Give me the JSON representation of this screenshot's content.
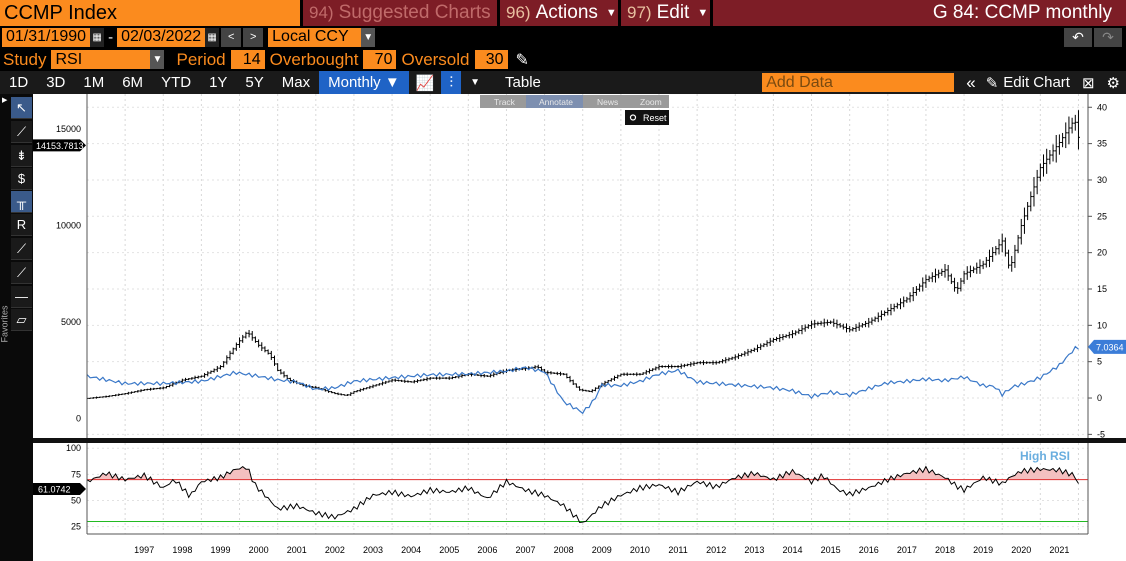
{
  "header": {
    "ticker": "CCMP Index",
    "suggested": {
      "num": "94)",
      "label": "Suggested Charts"
    },
    "actions": {
      "num": "96)",
      "label": "Actions"
    },
    "edit": {
      "num": "97)",
      "label": "Edit"
    },
    "page_title": "G 84: CCMP monthly"
  },
  "controls": {
    "start_date": "01/31/1990",
    "date_sep": "-",
    "end_date": "02/03/2022",
    "currency": "Local CCY"
  },
  "study": {
    "study_label": "Study",
    "study_value": "RSI",
    "period_label": "Period",
    "period_value": "14",
    "overbought_label": "Overbought",
    "overbought_value": "70",
    "oversold_label": "Oversold",
    "oversold_value": "30"
  },
  "toolbar": {
    "ranges": [
      "1D",
      "3D",
      "1M",
      "6M",
      "YTD",
      "1Y",
      "5Y",
      "Max"
    ],
    "frequency": "Monthly ▼",
    "table": "Table",
    "add_data_placeholder": "Add Data",
    "edit_chart": "Edit Chart"
  },
  "chart_tools": {
    "track": "Track",
    "annotate": "Annotate",
    "news": "News",
    "zoom": "Zoom",
    "reset": "Reset"
  },
  "sidebar": {
    "favorites": "Favorites"
  },
  "colors": {
    "orange": "#fb8b1e",
    "maroon": "#7d1d26",
    "blue_line": "#3a78c8",
    "overbought_line": "#e03030",
    "oversold_line": "#22bb22",
    "rsi_fill": "#f4c0c0",
    "badge_blue": "#3b7dd8"
  },
  "chart_data": [
    {
      "type": "line",
      "x": [
        "1997",
        "1998",
        "1999",
        "2000",
        "2001",
        "2002",
        "2003",
        "2004",
        "2005",
        "2006",
        "2007",
        "2008",
        "2009",
        "2010",
        "2011",
        "2012",
        "2013",
        "2014",
        "2015",
        "2016",
        "2017",
        "2018",
        "2019",
        "2020",
        "2021"
      ],
      "x_tick_labels": [
        "1997",
        "1998",
        "1999",
        "2000",
        "2001",
        "2002",
        "2003",
        "2004",
        "2005",
        "2006",
        "2007",
        "2008",
        "2009",
        "2010",
        "2011",
        "2012",
        "2013",
        "2014",
        "2015",
        "2016",
        "2017",
        "2018",
        "2019",
        "2020",
        "2021"
      ],
      "series": [
        {
          "axis": "left",
          "x": [
            1996.0,
            1996.5,
            1997.0,
            1997.5,
            1998.0,
            1998.5,
            1999.0,
            1999.5,
            1999.9,
            2000.2,
            2000.5,
            2000.8,
            2001.0,
            2001.3,
            2001.7,
            2002.0,
            2002.5,
            2002.8,
            2003.0,
            2003.5,
            2004.0,
            2004.5,
            2005.0,
            2005.5,
            2006.0,
            2006.5,
            2007.0,
            2007.5,
            2007.8,
            2008.0,
            2008.5,
            2008.9,
            2009.2,
            2009.5,
            2010.0,
            2010.5,
            2011.0,
            2011.5,
            2012.0,
            2012.5,
            2013.0,
            2013.5,
            2014.0,
            2014.5,
            2015.0,
            2015.5,
            2016.0,
            2016.5,
            2017.0,
            2017.5,
            2018.0,
            2018.5,
            2018.8,
            2019.0,
            2019.5,
            2020.0,
            2020.2,
            2020.5,
            2021.0,
            2021.5,
            2021.9,
            2022.05
          ],
          "values": [
            1050,
            1150,
            1300,
            1500,
            1600,
            2000,
            2200,
            2700,
            3800,
            4500,
            3800,
            3300,
            2500,
            2000,
            1700,
            1600,
            1300,
            1200,
            1400,
            1700,
            2000,
            1900,
            2100,
            2100,
            2300,
            2200,
            2500,
            2600,
            2700,
            2400,
            2300,
            1500,
            1400,
            1800,
            2300,
            2300,
            2700,
            2700,
            2900,
            2900,
            3200,
            3600,
            4100,
            4400,
            4900,
            5000,
            4600,
            5000,
            5600,
            6200,
            7200,
            7700,
            6600,
            7500,
            8000,
            9200,
            7700,
            10000,
            13000,
            14300,
            15500,
            14100
          ]
        },
        {
          "axis": "right",
          "x": [
            1996.0,
            1997.0,
            1998.0,
            1999.0,
            1999.9,
            2000.5,
            2001.0,
            2001.5,
            2002.0,
            2002.5,
            2003.0,
            2004.0,
            2005.0,
            2006.0,
            2007.0,
            2007.5,
            2008.0,
            2008.5,
            2009.0,
            2009.3,
            2009.5,
            2010.0,
            2010.5,
            2011.0,
            2011.5,
            2012.0,
            2013.0,
            2014.0,
            2014.5,
            2015.0,
            2015.5,
            2016.0,
            2016.5,
            2017.0,
            2017.5,
            2018.0,
            2018.5,
            2019.0,
            2019.5,
            2019.8,
            2020.0,
            2020.3,
            2020.6,
            2021.0,
            2021.5,
            2021.9,
            2022.05
          ],
          "values": [
            3,
            2,
            2,
            2.3,
            3.5,
            3,
            2.5,
            2.2,
            1.2,
            1.4,
            2.3,
            2.8,
            3.2,
            3.3,
            3.7,
            4.2,
            3.6,
            -0.5,
            -2,
            -0.3,
            1.8,
            1.7,
            2.3,
            3.3,
            3.8,
            2.2,
            1.8,
            1.4,
            1.0,
            0.2,
            0.8,
            0.4,
            1.3,
            2.1,
            2.3,
            2.6,
            2.4,
            2.9,
            1.7,
            1.6,
            0.5,
            1.6,
            2.0,
            2.8,
            4.5,
            6.8,
            7.0364
          ]
        }
      ],
      "ylim": [
        -1000,
        16500
      ],
      "y_ticks": [
        0,
        5000,
        10000,
        15000
      ],
      "y_tick_labels": [
        "0",
        "5000",
        "10000",
        "15000"
      ],
      "ylim_right": [
        -5.5,
        41
      ],
      "y_ticks_right": [
        -5,
        0,
        5,
        10,
        15,
        20,
        25,
        30,
        35,
        40
      ],
      "y_tick_labels_right": [
        "-5",
        "0",
        "5",
        "10",
        "15",
        "20",
        "25",
        "30",
        "35",
        "40"
      ],
      "last_value_left": "14153.7813",
      "last_value_right": "7.0364",
      "grid": true
    },
    {
      "type": "line",
      "series": [
        {
          "name": "High RSI",
          "x": [
            1996.0,
            1996.5,
            1997.0,
            1997.5,
            1998.0,
            1998.3,
            1998.7,
            1999.0,
            1999.5,
            1999.9,
            2000.2,
            2000.4,
            2000.8,
            2001.0,
            2001.5,
            2002.0,
            2002.5,
            2003.0,
            2003.5,
            2004.0,
            2004.5,
            2005.0,
            2005.5,
            2006.0,
            2006.5,
            2007.0,
            2007.5,
            2008.0,
            2008.5,
            2008.8,
            2009.0,
            2009.5,
            2010.0,
            2010.5,
            2011.0,
            2011.5,
            2012.0,
            2012.5,
            2013.0,
            2013.5,
            2014.0,
            2014.5,
            2015.0,
            2015.3,
            2015.7,
            2016.0,
            2016.5,
            2017.0,
            2017.5,
            2018.0,
            2018.5,
            2018.8,
            2019.0,
            2019.5,
            2020.0,
            2020.2,
            2020.5,
            2021.0,
            2021.5,
            2021.9,
            2022.05
          ],
          "values": [
            68,
            76,
            70,
            74,
            62,
            70,
            54,
            68,
            72,
            80,
            82,
            65,
            50,
            42,
            45,
            38,
            34,
            42,
            55,
            58,
            54,
            60,
            58,
            62,
            52,
            68,
            60,
            55,
            45,
            35,
            28,
            45,
            55,
            62,
            65,
            58,
            68,
            63,
            72,
            76,
            70,
            78,
            68,
            74,
            60,
            56,
            62,
            70,
            76,
            80,
            72,
            64,
            60,
            72,
            66,
            72,
            78,
            80,
            79,
            74,
            61.0742
          ]
        }
      ],
      "ylim": [
        18,
        105
      ],
      "y_ticks": [
        25,
        50,
        75,
        100
      ],
      "y_tick_labels": [
        "25",
        "50",
        "75",
        "100"
      ],
      "overbought": 70,
      "oversold": 30,
      "last_value": "61.0742",
      "legend_label": "High RSI"
    }
  ]
}
